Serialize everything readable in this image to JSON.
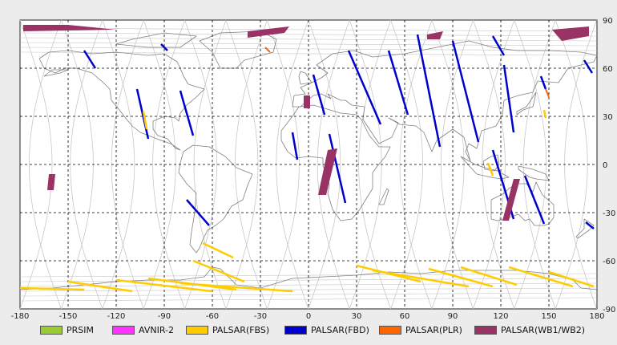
{
  "x_ticks": [
    "-180",
    "-150",
    "-120",
    "-90",
    "-60",
    "-30",
    "0",
    "30",
    "60",
    "90",
    "120",
    "150",
    "180"
  ],
  "y_ticks": [
    "90",
    "60",
    "30",
    "0",
    "-30",
    "-60",
    "-90"
  ],
  "legend": [
    {
      "label": "PRSIM",
      "color": "#99cc33"
    },
    {
      "label": "AVNIR-2",
      "color": "#ff33ff"
    },
    {
      "label": "PALSAR(FBS)",
      "color": "#ffcc00"
    },
    {
      "label": "PALSAR(FBD)",
      "color": "#0000cc"
    },
    {
      "label": "PALSAR(PLR)",
      "color": "#ff6600"
    },
    {
      "label": "PALSAR(WB1/WB2)",
      "color": "#993366"
    }
  ],
  "colors": {
    "background": "#ececec",
    "map": "#ffffff",
    "grid": "#000000",
    "orbit": "#c8c8c8",
    "coast": "#808080"
  }
}
